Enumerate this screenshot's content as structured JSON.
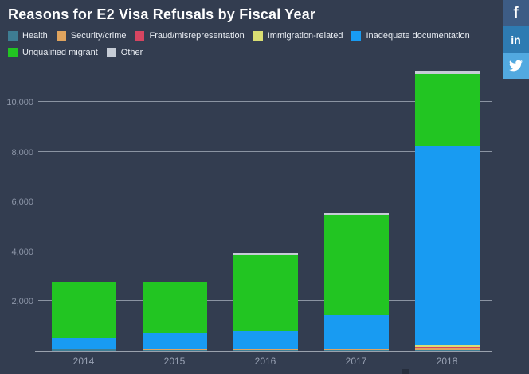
{
  "title": "Reasons for E2 Visa Refusals by Fiscal Year",
  "colors": {
    "background": "#333d50",
    "gridline": "#aab1bd",
    "axis_text": "#8d96a8",
    "x_label_text": "#98a1b3",
    "title_text": "#ffffff"
  },
  "social": [
    {
      "name": "facebook",
      "glyph": "f",
      "color": "#3d5c85"
    },
    {
      "name": "linkedin",
      "glyph": "in",
      "color": "#2e7bb2"
    },
    {
      "name": "twitter",
      "glyph": "",
      "color": "#52a9e0"
    }
  ],
  "chart_data": {
    "type": "bar",
    "stacked": true,
    "title": "Reasons for E2 Visa Refusals by Fiscal Year",
    "xlabel": "",
    "ylabel": "",
    "grid": true,
    "legend_position": "top",
    "ylim": [
      0,
      11600
    ],
    "categories": [
      "2014",
      "2015",
      "2016",
      "2017",
      "2018"
    ],
    "yticks": [
      {
        "value": 2000,
        "label": "2,000"
      },
      {
        "value": 4000,
        "label": "4,000"
      },
      {
        "value": 6000,
        "label": "6,000"
      },
      {
        "value": 8000,
        "label": "8,000"
      },
      {
        "value": 10000,
        "label": "10,000"
      }
    ],
    "series": [
      {
        "name": "Health",
        "color": "#3e7d93",
        "values": [
          50,
          30,
          30,
          30,
          30
        ]
      },
      {
        "name": "Security/crime",
        "color": "#e0a45e",
        "values": [
          30,
          60,
          50,
          50,
          100
        ]
      },
      {
        "name": "Fraud/misrepresentation",
        "color": "#d64561",
        "values": [
          10,
          10,
          10,
          10,
          20
        ]
      },
      {
        "name": "Immigration-related",
        "color": "#d9de73",
        "values": [
          10,
          10,
          10,
          20,
          60
        ]
      },
      {
        "name": "Inadequate documentation",
        "color": "#189bf2",
        "values": [
          420,
          640,
          700,
          1340,
          8050
        ]
      },
      {
        "name": "Unqualified migrant",
        "color": "#22c522",
        "values": [
          2230,
          1990,
          3050,
          4000,
          2850
        ]
      },
      {
        "name": "Other",
        "color": "#c6ccd6",
        "values": [
          30,
          40,
          80,
          80,
          150
        ]
      }
    ]
  }
}
